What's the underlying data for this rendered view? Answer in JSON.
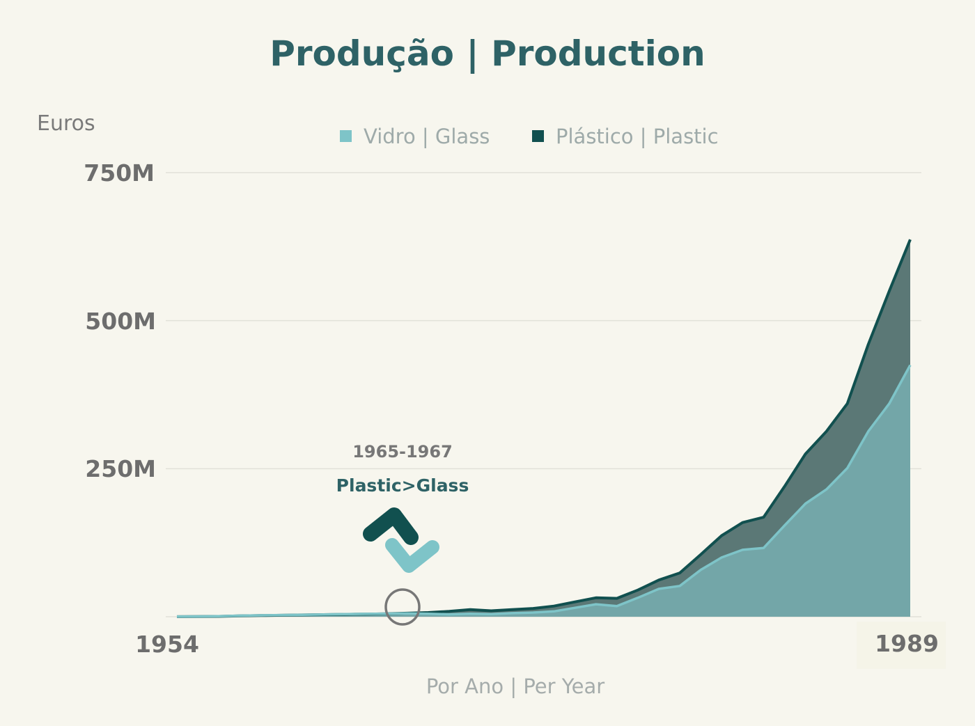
{
  "chart_data": {
    "type": "area",
    "title": "Produção | Production",
    "ylabel": "Euros",
    "xlabel": "Por Ano | Per Year",
    "ylim": [
      0,
      750000000
    ],
    "xlim": [
      1954,
      1989
    ],
    "y_ticks": [
      "250M",
      "500M",
      "750M"
    ],
    "x_ticks": [
      "1954",
      "1989"
    ],
    "grid": true,
    "legend_position": "top",
    "x": [
      1954,
      1955,
      1956,
      1957,
      1958,
      1959,
      1960,
      1961,
      1962,
      1963,
      1964,
      1965,
      1966,
      1967,
      1968,
      1969,
      1970,
      1971,
      1972,
      1973,
      1974,
      1975,
      1976,
      1977,
      1978,
      1979,
      1980,
      1981,
      1982,
      1983,
      1984,
      1985,
      1986,
      1987,
      1988,
      1989
    ],
    "series": [
      {
        "name": "Vidro | Glass",
        "color": "#7ec4c8",
        "values": [
          0.2,
          0.5,
          0.9,
          1.8,
          2.3,
          2.8,
          3.3,
          3.8,
          4.3,
          4.8,
          5.2,
          5.5,
          5.0,
          4,
          5,
          4.5,
          6,
          7,
          9,
          15,
          21,
          18,
          32,
          47,
          52,
          79,
          100,
          113,
          116,
          154,
          191,
          215,
          251,
          313,
          360,
          425
        ]
      },
      {
        "name": "Plástico | Plastic",
        "color": "#11504f",
        "values": [
          0.1,
          0.3,
          0.6,
          1.5,
          2.0,
          2.5,
          3,
          3.5,
          4,
          4.5,
          5,
          6,
          7,
          9,
          12,
          10,
          12,
          14,
          18,
          25,
          32,
          31,
          45,
          62,
          74,
          105,
          137,
          159,
          168,
          220,
          275,
          313,
          360,
          460,
          550,
          637
        ]
      }
    ],
    "value_unit": "M",
    "annotation": {
      "period": "1965-1967",
      "text": "Plastic>Glass",
      "highlight_year": 1965
    }
  }
}
